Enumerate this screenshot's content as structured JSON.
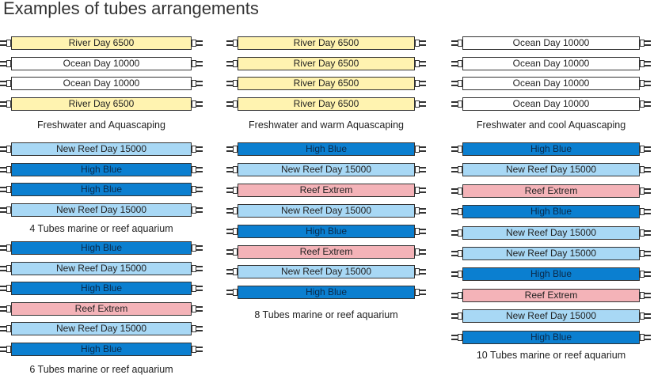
{
  "title": "Examples of tubes arrangements",
  "colors": {
    "River Day 6500": "#fff3b0",
    "Ocean Day 10000": "#ffffff",
    "New Reef Day 15000": "#a8d8f5",
    "High Blue": "#0b7fd0",
    "Reef Extrem": "#f4b3b8"
  },
  "textColors": {
    "High Blue": "#0b2a4a"
  },
  "groups": [
    {
      "caption": "Freshwater and Aquascaping",
      "tubes": [
        "River Day 6500",
        "Ocean Day 10000",
        "Ocean Day 10000",
        "River Day 6500"
      ]
    },
    {
      "caption": "Freshwater and warm Aquascaping",
      "tubes": [
        "River Day 6500",
        "River Day 6500",
        "River Day 6500",
        "River Day 6500"
      ]
    },
    {
      "caption": "Freshwater and cool Aquascaping",
      "tubes": [
        "Ocean Day 10000",
        "Ocean Day 10000",
        "Ocean Day 10000",
        "Ocean Day 10000"
      ]
    },
    {
      "caption": "4 Tubes marine or reef aquarium",
      "tubes": [
        "New Reef Day 15000",
        "High Blue",
        "High Blue",
        "New Reef Day 15000"
      ]
    },
    {
      "caption": "8 Tubes marine or reef aquarium",
      "tubes": [
        "High Blue",
        "New Reef Day 15000",
        "Reef Extrem",
        "New Reef Day 15000",
        "High Blue",
        "Reef Extrem",
        "New Reef Day 15000",
        "High Blue"
      ]
    },
    {
      "caption": "10 Tubes marine or reef aquarium",
      "tubes": [
        "High Blue",
        "New Reef Day 15000",
        "Reef Extrem",
        "High Blue",
        "New Reef Day 15000",
        "New Reef Day 15000",
        "High Blue",
        "Reef Extrem",
        "New Reef Day 15000",
        "High Blue"
      ]
    },
    {
      "caption": "6 Tubes marine or reef aquarium",
      "tubes": [
        "High Blue",
        "New Reef Day 15000",
        "High Blue",
        "Reef Extrem",
        "New Reef Day 15000",
        "High Blue"
      ]
    }
  ]
}
